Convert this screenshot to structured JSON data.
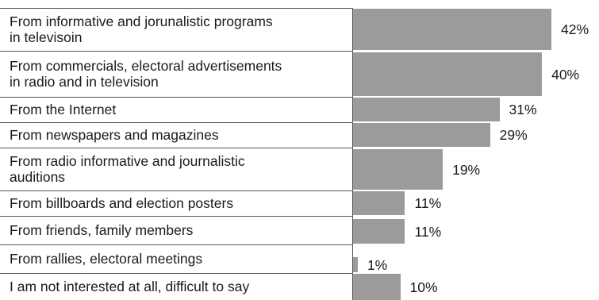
{
  "chart_data": {
    "type": "bar",
    "orientation": "horizontal",
    "categories": [
      "From informative and jorunalistic programs\nin televisoin",
      "From commercials, electoral advertisements\nin radio and in television",
      "From the Internet",
      "From newspapers and magazines",
      "From radio informative and journalistic\nauditions",
      "From billboards and election posters",
      "From friends, family members",
      "From rallies, electoral meetings",
      "I am not interested at all, difficult to say"
    ],
    "values": [
      42,
      40,
      31,
      29,
      19,
      11,
      11,
      1,
      10
    ],
    "value_labels": [
      "42%",
      "40%",
      "31%",
      "29%",
      "19%",
      "11%",
      "11%",
      "1%",
      "10%"
    ],
    "unit": "%",
    "xlim": [
      0,
      42
    ],
    "bar_color": "#9b9b9b",
    "grid": false,
    "legend": false
  }
}
